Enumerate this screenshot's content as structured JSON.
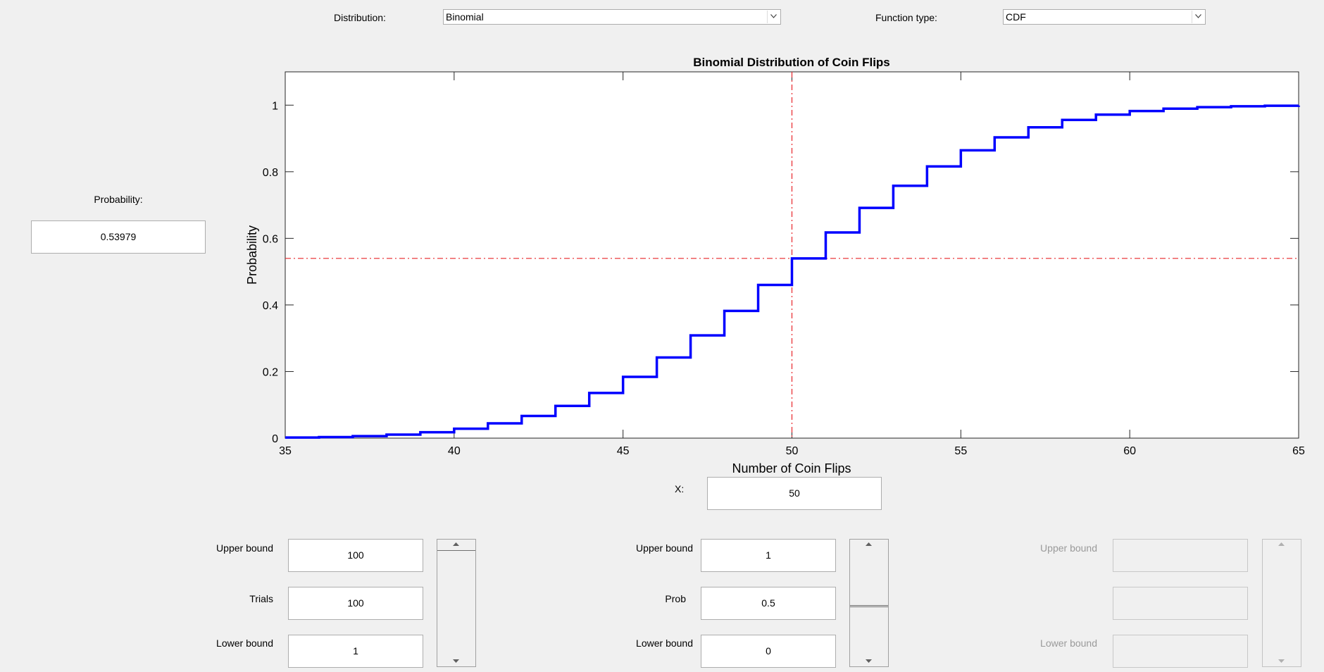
{
  "controls": {
    "distribution_label": "Distribution:",
    "distribution_value": "Binomial",
    "function_type_label": "Function type:",
    "function_type_value": "CDF"
  },
  "probability": {
    "label": "Probability:",
    "value": "0.53979"
  },
  "x_field": {
    "label": "X:",
    "value": "50"
  },
  "param1": {
    "upper_label": "Upper bound",
    "upper_value": "100",
    "name_label": "Trials",
    "value": "100",
    "lower_label": "Lower bound",
    "lower_value": "1"
  },
  "param2": {
    "upper_label": "Upper bound",
    "upper_value": "1",
    "name_label": "Prob",
    "value": "0.5",
    "lower_label": "Lower bound",
    "lower_value": "0"
  },
  "param3": {
    "upper_label": "Upper bound",
    "lower_label": "Lower bound"
  },
  "colors": {
    "series": "#0000ff",
    "crosshair": "#e8262a"
  },
  "chart_data": {
    "type": "line",
    "step": true,
    "title": "Binomial Distribution of Coin Flips",
    "xlabel": "Number of Coin Flips",
    "ylabel": "Probability",
    "xlim": [
      35,
      65
    ],
    "ylim": [
      0,
      1.1
    ],
    "xticks": [
      "35",
      "40",
      "45",
      "50",
      "55",
      "60",
      "65"
    ],
    "yticks": [
      "0",
      "0.2",
      "0.4",
      "0.6",
      "0.8",
      "1"
    ],
    "grid": false,
    "crosshair": {
      "x": 50,
      "y": 0.53979
    },
    "series": [
      {
        "x": [
          35,
          36,
          37,
          38,
          39,
          40,
          41,
          42,
          43,
          44,
          45,
          46,
          47,
          48,
          49,
          50,
          51,
          52,
          53,
          54,
          55,
          56,
          57,
          58,
          59,
          60,
          61,
          62,
          63,
          64,
          65
        ],
        "values": [
          0.0018,
          0.0033,
          0.006,
          0.0105,
          0.0176,
          0.0284,
          0.0443,
          0.0666,
          0.0967,
          0.1356,
          0.1841,
          0.2421,
          0.3086,
          0.3822,
          0.4602,
          0.5398,
          0.6178,
          0.6914,
          0.7579,
          0.8159,
          0.8644,
          0.9033,
          0.9334,
          0.9557,
          0.9716,
          0.9824,
          0.9895,
          0.994,
          0.9967,
          0.9982,
          0.9991
        ]
      }
    ]
  }
}
